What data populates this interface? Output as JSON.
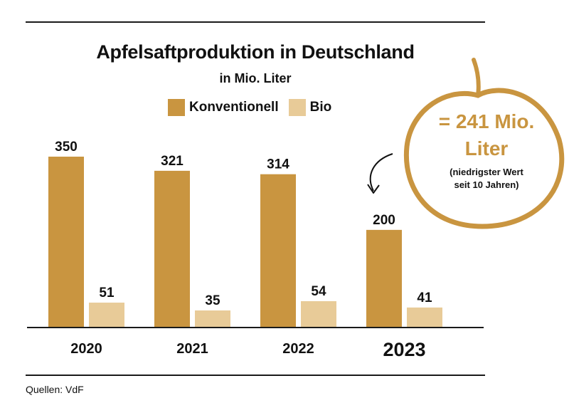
{
  "title": "Apfelsaftproduktion in Deutschland",
  "subtitle": "in Mio. Liter",
  "source": "Quellen: VdF",
  "colors": {
    "konventionell": "#c99540",
    "bio": "#e8cb98",
    "text": "#111111"
  },
  "annotation": {
    "line1": "= 241 Mio.",
    "line2": "Liter",
    "line3": "(niedrigster Wert",
    "line4": "seit 10 Jahren)",
    "icon": "apple-outline-icon"
  },
  "chart_data": {
    "type": "bar",
    "categories": [
      "2020",
      "2021",
      "2022",
      "2023"
    ],
    "series": [
      {
        "name": "Konventionell",
        "values": [
          350,
          321,
          314,
          200
        ]
      },
      {
        "name": "Bio",
        "values": [
          51,
          35,
          54,
          41
        ]
      }
    ],
    "ylim": [
      0,
      350
    ],
    "grid": false,
    "legend": "top-center",
    "highlight_category": "2023"
  }
}
